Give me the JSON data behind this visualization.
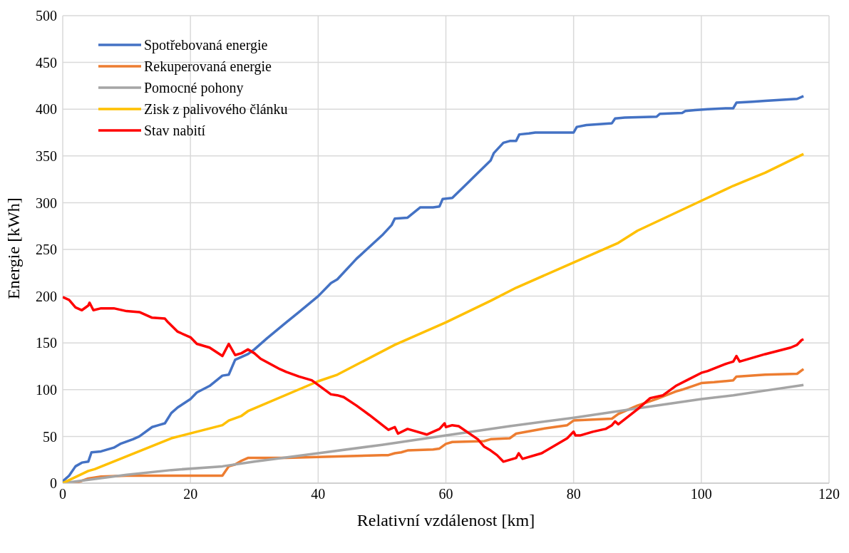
{
  "chart_data": {
    "type": "line",
    "xlabel": "Relativní vzdálenost [km]",
    "ylabel": "Energie [kWh]",
    "xlim": [
      0,
      120
    ],
    "xticks": [
      0,
      20,
      40,
      60,
      80,
      100,
      120
    ],
    "ylim": [
      0,
      500
    ],
    "yticks": [
      0,
      50,
      100,
      150,
      200,
      250,
      300,
      350,
      400,
      450,
      500
    ],
    "grid": true,
    "legend": "top left",
    "marker": "none",
    "line_style": "solid",
    "series": [
      {
        "name": "Spotřebovaná energie",
        "color": "#4472c4",
        "x": [
          0,
          1,
          2,
          3,
          4,
          4.5,
          6,
          8,
          9,
          11,
          12,
          14,
          15,
          16,
          17,
          18,
          20,
          21,
          23,
          25,
          26,
          27,
          28,
          29,
          30,
          32,
          35,
          37,
          40,
          42,
          43,
          46,
          50,
          51.5,
          52,
          54,
          56,
          58,
          59,
          59.5,
          61,
          64,
          67,
          67.5,
          69,
          70,
          71,
          71.5,
          73,
          74,
          80,
          80.5,
          82,
          86,
          86.5,
          88,
          93,
          93.5,
          97,
          97.5,
          99,
          101,
          104,
          105,
          105.5,
          108,
          110,
          115,
          116
        ],
        "values": [
          2,
          8,
          18,
          22,
          23,
          33,
          34,
          38,
          42,
          47,
          50,
          60,
          62,
          64,
          75,
          81,
          90,
          97,
          104,
          115,
          116,
          132,
          135,
          138,
          143,
          155,
          172,
          183,
          200,
          214,
          218,
          240,
          265,
          276,
          283,
          284,
          295,
          295,
          296,
          304,
          305,
          325,
          345,
          353,
          364,
          366,
          366,
          373,
          374,
          375,
          375,
          381,
          383,
          385,
          390,
          391,
          392,
          395,
          396,
          398,
          399,
          400,
          401,
          401,
          407,
          408,
          409,
          411,
          414
        ]
      },
      {
        "name": "Rekuperovaná energie",
        "color": "#ed7d31",
        "x": [
          0,
          2,
          4,
          6,
          10,
          15,
          20,
          25,
          26,
          27,
          28,
          29,
          35,
          40,
          45,
          50,
          51,
          52,
          53,
          54,
          58,
          59,
          60,
          61,
          66,
          67,
          70,
          71,
          75,
          77,
          79,
          80,
          83,
          86,
          87,
          90,
          93,
          96,
          97,
          100,
          102,
          105,
          105.5,
          110,
          115,
          116
        ],
        "values": [
          0,
          0,
          5,
          7,
          8,
          8,
          8,
          8,
          18,
          20,
          24,
          27,
          27,
          28,
          29,
          30,
          30,
          32,
          33,
          35,
          36,
          37,
          42,
          44,
          45,
          47,
          48,
          53,
          58,
          60,
          62,
          67,
          68,
          69,
          74,
          83,
          90,
          98,
          100,
          107,
          108,
          110,
          114,
          116,
          117,
          122
        ]
      },
      {
        "name": "Pomocné pohony",
        "color": "#a5a5a5",
        "x": [
          0,
          10,
          17,
          25,
          30,
          40,
          50,
          60,
          70,
          80,
          90,
          100,
          105,
          110,
          116
        ],
        "values": [
          0,
          9,
          14,
          18,
          23,
          32,
          41,
          51,
          61,
          70,
          80,
          90,
          94,
          99,
          105
        ]
      },
      {
        "name": "Zisk z palivového článku",
        "color": "#ffc000",
        "x": [
          0,
          4,
          5,
          17,
          25,
          26,
          28,
          29,
          40,
          43,
          52,
          60,
          67,
          71,
          80,
          87,
          90,
          100,
          105,
          110,
          116
        ],
        "values": [
          0,
          13,
          15,
          48,
          62,
          67,
          72,
          77,
          109,
          116,
          148,
          172,
          195,
          209,
          236,
          257,
          270,
          302,
          318,
          332,
          352
        ]
      },
      {
        "name": "Stav nabití",
        "color": "#ff0000",
        "x": [
          0,
          1,
          2,
          3,
          4,
          4.2,
          4.8,
          6,
          8,
          10,
          12,
          14,
          16,
          16.5,
          18,
          20,
          21,
          23,
          25,
          26,
          27,
          28,
          29,
          30,
          31,
          34,
          35,
          37,
          39,
          42,
          43,
          44,
          46,
          48,
          51,
          52,
          52.5,
          54,
          57,
          59,
          59.8,
          60,
          61,
          62,
          65,
          66,
          67,
          68,
          69,
          71,
          71.4,
          72,
          75,
          77,
          79,
          80,
          80.3,
          81,
          83,
          85,
          86,
          86.5,
          87,
          90,
          92,
          94,
          96,
          98,
          100,
          101,
          104,
          105,
          105.5,
          106,
          108,
          110,
          114,
          115,
          115.7,
          116
        ],
        "values": [
          199,
          196,
          188,
          185,
          190,
          193,
          185,
          187,
          187,
          184,
          183,
          177,
          176,
          172,
          162,
          156,
          149,
          145,
          136,
          149,
          137,
          139,
          143,
          139,
          133,
          122,
          119,
          114,
          110,
          95,
          94,
          92,
          83,
          73,
          57,
          60,
          53,
          58,
          52,
          58,
          64,
          60,
          62,
          61,
          47,
          39,
          35,
          30,
          23,
          27,
          32,
          26,
          32,
          40,
          48,
          55,
          51,
          51,
          55,
          58,
          62,
          66,
          63,
          79,
          91,
          94,
          104,
          111,
          118,
          120,
          128,
          130,
          136,
          130,
          134,
          138,
          145,
          148,
          153,
          154
        ]
      }
    ]
  }
}
